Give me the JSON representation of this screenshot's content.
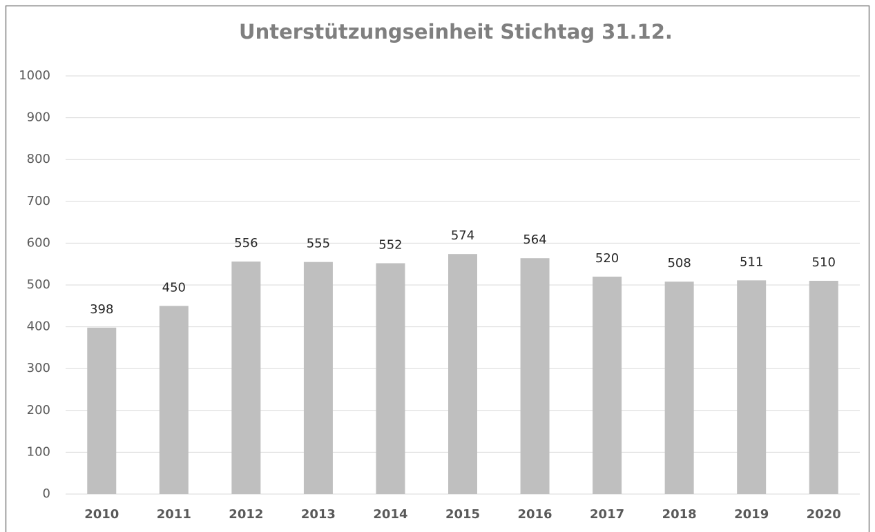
{
  "chart_data": {
    "type": "bar",
    "title": "Unterstützungseinheit Stichtag 31.12.",
    "categories": [
      "2010",
      "2011",
      "2012",
      "2013",
      "2014",
      "2015",
      "2016",
      "2017",
      "2018",
      "2019",
      "2020"
    ],
    "values": [
      398,
      450,
      556,
      555,
      552,
      574,
      564,
      520,
      508,
      511,
      510
    ],
    "color": "#bfbfbf",
    "ylim": [
      0,
      1000
    ],
    "yticks": [
      0,
      100,
      200,
      300,
      400,
      500,
      600,
      700,
      800,
      900,
      1000
    ],
    "grid": true,
    "data_labels": true
  }
}
